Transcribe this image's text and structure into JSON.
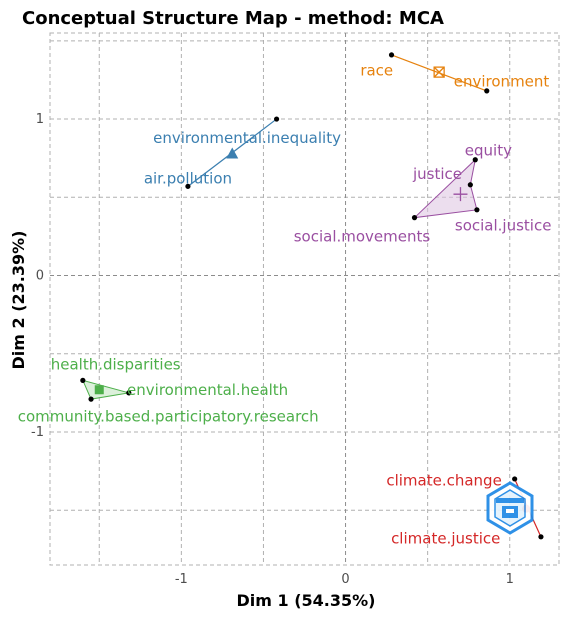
{
  "chart_data": {
    "type": "scatter",
    "title": "Conceptual Structure Map - method: MCA",
    "xlabel": "Dim 1 (54.35%)",
    "ylabel": "Dim 2 (23.39%)",
    "xlim": [
      -1.8,
      1.3
    ],
    "ylim": [
      -1.85,
      1.55
    ],
    "xticks": [
      -1,
      0,
      1
    ],
    "yticks": [
      -1,
      0,
      1
    ],
    "xtick_labels": [
      "-1",
      "0",
      "1"
    ],
    "ytick_labels": [
      "-1",
      "0",
      "1"
    ],
    "grid": true,
    "clusters": [
      {
        "color": "#E6820E",
        "fill": "#E6820E",
        "marker": "square-x",
        "centroid": [
          0.57,
          1.3
        ],
        "points": [
          {
            "label": "race",
            "x": 0.28,
            "y": 1.41,
            "label_x": 0.19,
            "label_y": 1.31
          },
          {
            "label": "environment",
            "x": 0.86,
            "y": 1.18,
            "label_x": 0.95,
            "label_y": 1.24
          }
        ]
      },
      {
        "color": "#3B7FB0",
        "fill": "#3B7FB0",
        "marker": "triangle",
        "centroid": [
          -0.69,
          0.78
        ],
        "points": [
          {
            "label": "environmental.inequality",
            "x": -0.42,
            "y": 1.0,
            "label_x": -0.6,
            "label_y": 0.88
          },
          {
            "label": "air.pollution",
            "x": -0.96,
            "y": 0.57,
            "label_x": -0.96,
            "label_y": 0.62
          }
        ]
      },
      {
        "color": "#9A4FA1",
        "fill": "#DCC2E0",
        "marker": "plus",
        "centroid": [
          0.7,
          0.52
        ],
        "points": [
          {
            "label": "equity",
            "x": 0.79,
            "y": 0.74,
            "label_x": 0.87,
            "label_y": 0.8
          },
          {
            "label": "justice",
            "x": 0.76,
            "y": 0.58,
            "label_x": 0.56,
            "label_y": 0.65
          },
          {
            "label": "social.justice",
            "x": 0.8,
            "y": 0.42,
            "label_x": 0.96,
            "label_y": 0.32
          },
          {
            "label": "social.movements",
            "x": 0.42,
            "y": 0.37,
            "label_x": 0.1,
            "label_y": 0.25
          }
        ]
      },
      {
        "color": "#4DAF4A",
        "fill": "#BFE3BD",
        "marker": "square",
        "centroid": [
          -1.5,
          -0.73
        ],
        "points": [
          {
            "label": "health.disparities",
            "x": -1.6,
            "y": -0.67,
            "label_x": -1.4,
            "label_y": -0.57
          },
          {
            "label": "environmental.health",
            "x": -1.32,
            "y": -0.75,
            "label_x": -0.84,
            "label_y": -0.73
          },
          {
            "label": "community.based.participatory.research",
            "x": -1.55,
            "y": -0.79,
            "label_x": -1.08,
            "label_y": -0.9
          }
        ]
      },
      {
        "color": "#D42727",
        "fill": "#D42727",
        "marker": "circle",
        "centroid": [
          1.1,
          -1.49
        ],
        "points": [
          {
            "label": "climate.change",
            "x": 1.03,
            "y": -1.3,
            "label_x": 0.6,
            "label_y": -1.31
          },
          {
            "label": "climate.justice",
            "x": 1.19,
            "y": -1.67,
            "label_x": 0.61,
            "label_y": -1.68
          }
        ]
      }
    ]
  },
  "icons": {
    "watermark": "bibliometrix-logo-icon"
  }
}
